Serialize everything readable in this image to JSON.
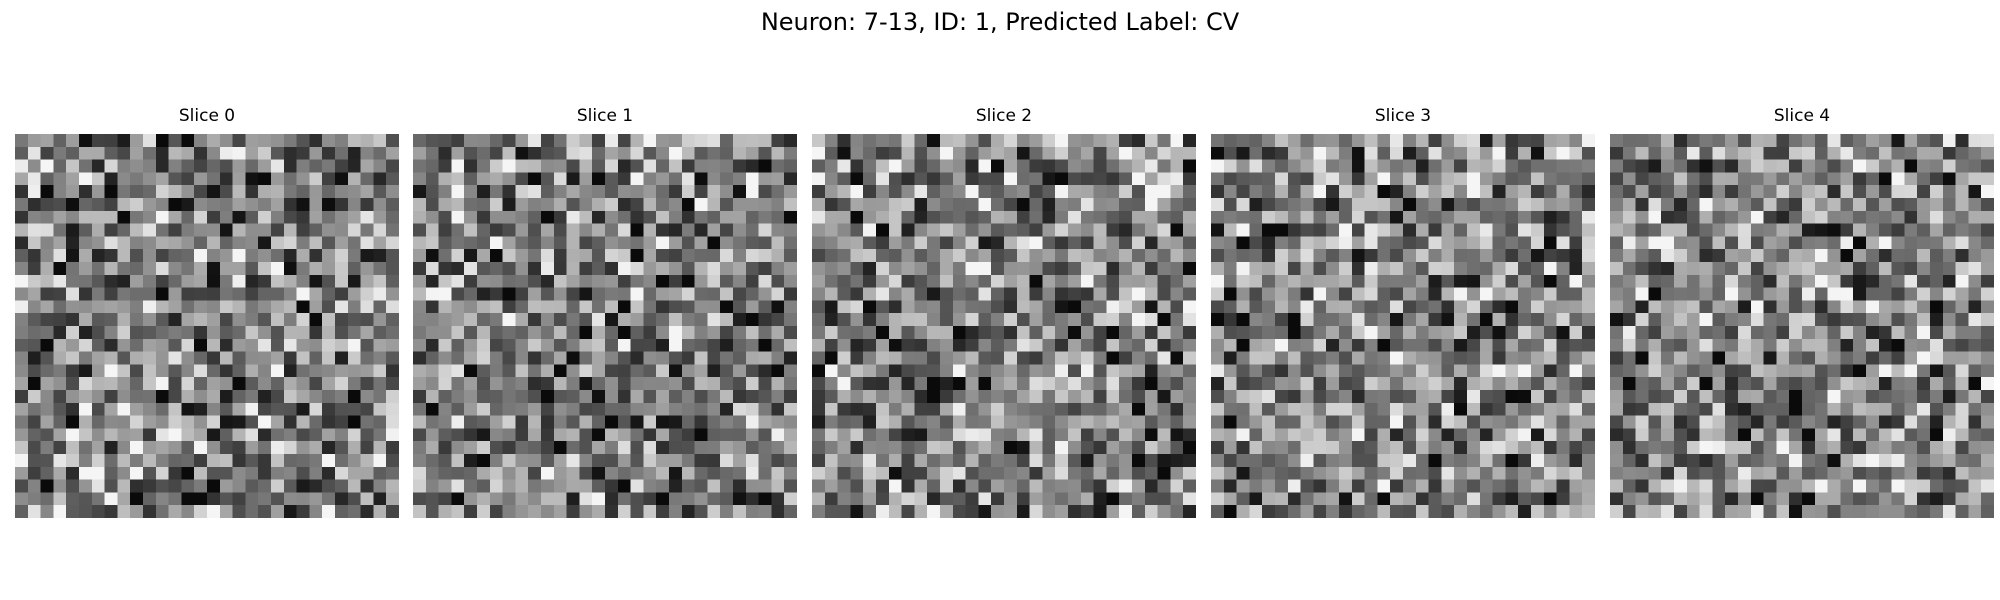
{
  "figure": {
    "title": "Neuron: 7-13, ID: 1, Predicted Label: CV"
  },
  "chart_data": {
    "type": "heatmap",
    "title": "Neuron: 7-13, ID: 1, Predicted Label: CV",
    "colormap": "gray",
    "grid_size": [
      30,
      30
    ],
    "value_range": [
      0,
      1
    ],
    "axes_visible": false,
    "grid": false,
    "panels": [
      {
        "title": "Slice 0",
        "seed": 101
      },
      {
        "title": "Slice 1",
        "seed": 202
      },
      {
        "title": "Slice 2",
        "seed": 303
      },
      {
        "title": "Slice 3",
        "seed": 404
      },
      {
        "title": "Slice 4",
        "seed": 505
      }
    ]
  }
}
